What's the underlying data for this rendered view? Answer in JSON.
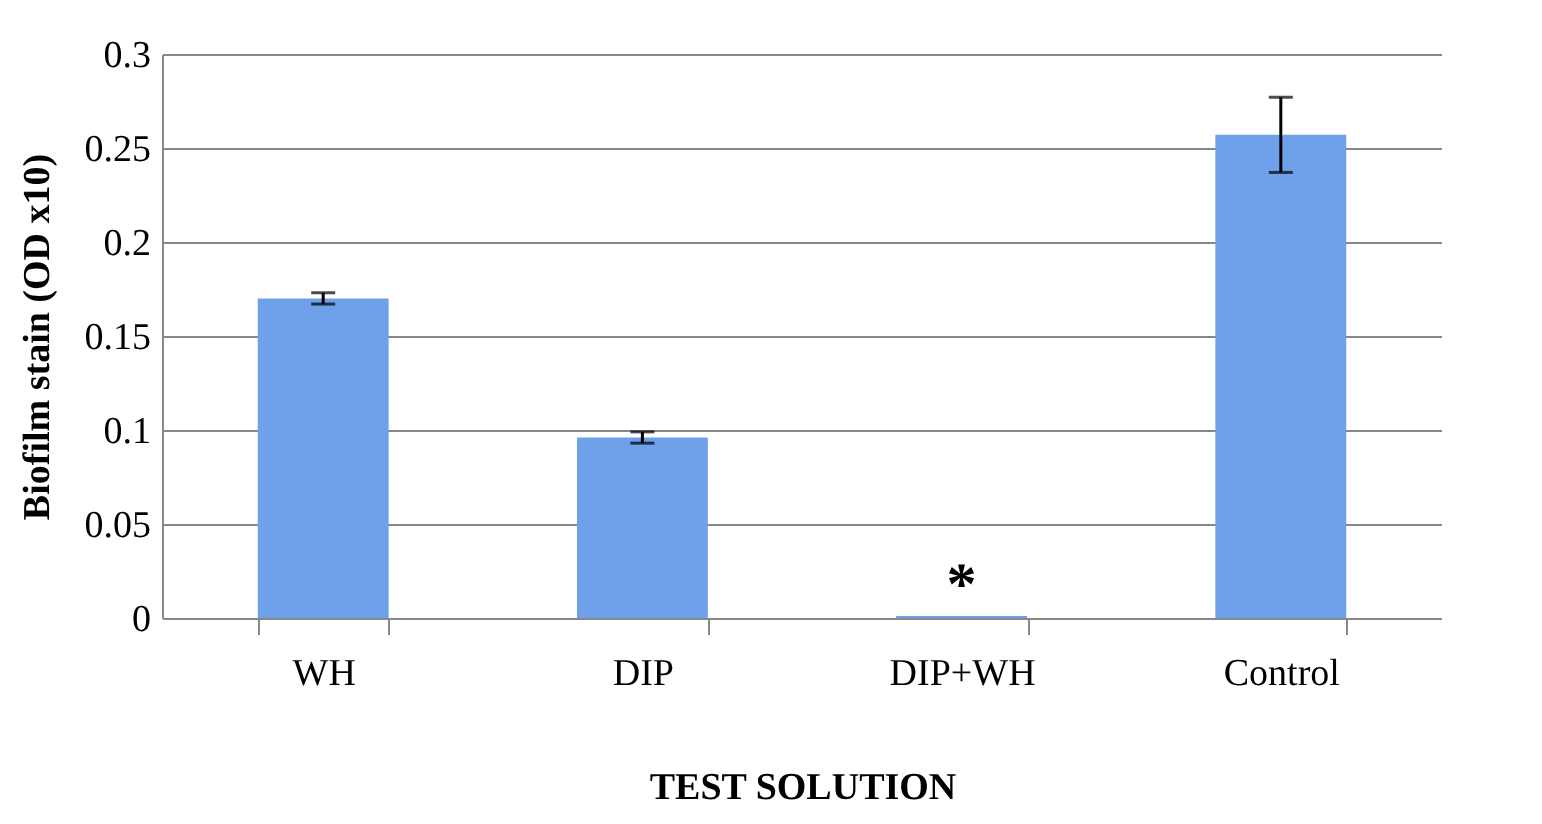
{
  "chart_data": {
    "type": "bar",
    "xlabel": "TEST SOLUTION",
    "ylabel": "Biofilm stain (OD x10)",
    "categories": [
      "WH",
      "DIP",
      "DIP+WH",
      "Control"
    ],
    "values": [
      0.17,
      0.096,
      0.001,
      0.257
    ],
    "errors": [
      0.003,
      0.003,
      null,
      0.02
    ],
    "color": "#6fa0ea",
    "ylim": [
      0,
      0.3
    ],
    "yticks": [
      0,
      0.05,
      0.1,
      0.15,
      0.2,
      0.25,
      0.3
    ],
    "grid": "y",
    "annotations": [
      {
        "text": "*",
        "x": "DIP+WH",
        "y": 0.001
      }
    ]
  }
}
